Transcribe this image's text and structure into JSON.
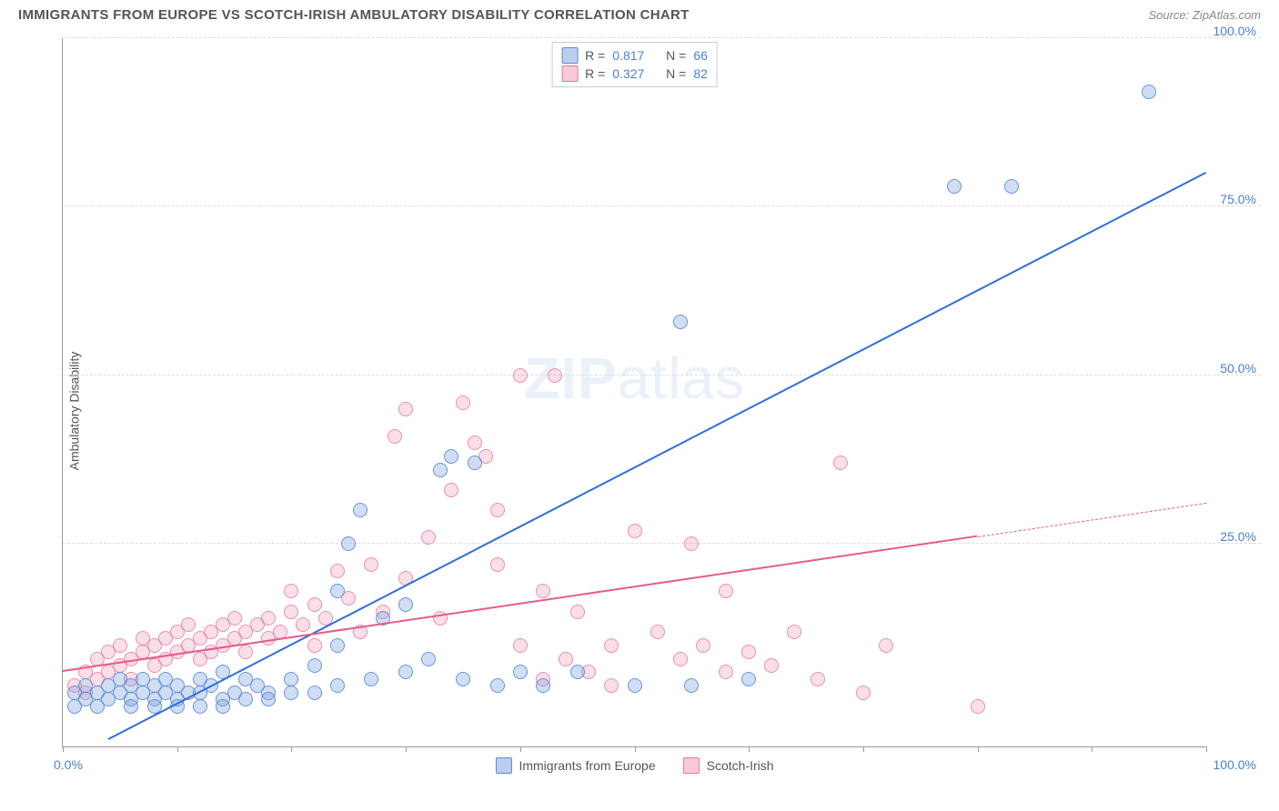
{
  "header": {
    "title": "IMMIGRANTS FROM EUROPE VS SCOTCH-IRISH AMBULATORY DISABILITY CORRELATION CHART",
    "source_label": "Source: ZipAtlas.com"
  },
  "chart": {
    "type": "scatter",
    "y_axis_title": "Ambulatory Disability",
    "xlim": [
      0,
      100
    ],
    "ylim": [
      -5,
      100
    ],
    "x_ticks": [
      0,
      10,
      20,
      30,
      40,
      50,
      60,
      70,
      80,
      90,
      100
    ],
    "x_tick_labels": {
      "min": "0.0%",
      "max": "100.0%"
    },
    "y_gridlines": [
      25,
      50,
      75,
      100
    ],
    "y_tick_labels": [
      "25.0%",
      "50.0%",
      "75.0%",
      "100.0%"
    ],
    "background_color": "#ffffff",
    "grid_color": "#dddddd",
    "axis_color": "#999999",
    "label_color": "#4a7fd8",
    "watermark_text": "ZIPatlas",
    "series": [
      {
        "name": "Immigrants from Europe",
        "color_fill": "rgba(120,160,220,0.35)",
        "color_stroke": "rgba(80,130,210,0.8)",
        "trend_color": "#2e6fd9",
        "R": "0.817",
        "N": "66",
        "trend": {
          "x1": 4,
          "y1": -4,
          "x2": 100,
          "y2": 80
        },
        "points": [
          [
            1,
            1
          ],
          [
            1,
            3
          ],
          [
            2,
            2
          ],
          [
            2,
            4
          ],
          [
            3,
            1
          ],
          [
            3,
            3
          ],
          [
            4,
            2
          ],
          [
            4,
            4
          ],
          [
            5,
            3
          ],
          [
            5,
            5
          ],
          [
            6,
            2
          ],
          [
            6,
            4
          ],
          [
            7,
            5
          ],
          [
            7,
            3
          ],
          [
            8,
            4
          ],
          [
            8,
            2
          ],
          [
            9,
            3
          ],
          [
            9,
            5
          ],
          [
            10,
            4
          ],
          [
            10,
            2
          ],
          [
            11,
            3
          ],
          [
            12,
            5
          ],
          [
            12,
            3
          ],
          [
            13,
            4
          ],
          [
            14,
            2
          ],
          [
            14,
            6
          ],
          [
            15,
            3
          ],
          [
            16,
            5
          ],
          [
            17,
            4
          ],
          [
            18,
            3
          ],
          [
            6,
            1
          ],
          [
            8,
            1
          ],
          [
            10,
            1
          ],
          [
            12,
            1
          ],
          [
            14,
            1
          ],
          [
            16,
            2
          ],
          [
            18,
            2
          ],
          [
            20,
            3
          ],
          [
            22,
            3
          ],
          [
            24,
            4
          ],
          [
            20,
            5
          ],
          [
            22,
            7
          ],
          [
            24,
            18
          ],
          [
            25,
            25
          ],
          [
            26,
            30
          ],
          [
            28,
            14
          ],
          [
            30,
            6
          ],
          [
            32,
            8
          ],
          [
            34,
            38
          ],
          [
            36,
            37
          ],
          [
            33,
            36
          ],
          [
            24,
            10
          ],
          [
            27,
            5
          ],
          [
            30,
            16
          ],
          [
            35,
            5
          ],
          [
            38,
            4
          ],
          [
            40,
            6
          ],
          [
            42,
            4
          ],
          [
            45,
            6
          ],
          [
            50,
            4
          ],
          [
            55,
            4
          ],
          [
            60,
            5
          ],
          [
            54,
            58
          ],
          [
            78,
            78
          ],
          [
            83,
            78
          ],
          [
            95,
            92
          ]
        ]
      },
      {
        "name": "Scotch-Irish",
        "color_fill": "rgba(240,150,175,0.3)",
        "color_stroke": "rgba(230,110,150,0.7)",
        "trend_color": "#e85a8a",
        "R": "0.327",
        "N": "82",
        "trend": {
          "x1": 0,
          "y1": 6,
          "x2": 80,
          "y2": 26
        },
        "trend_dashed": {
          "x1": 80,
          "y1": 26,
          "x2": 100,
          "y2": 31
        },
        "points": [
          [
            1,
            4
          ],
          [
            2,
            6
          ],
          [
            2,
            3
          ],
          [
            3,
            5
          ],
          [
            3,
            8
          ],
          [
            4,
            6
          ],
          [
            4,
            9
          ],
          [
            5,
            7
          ],
          [
            5,
            10
          ],
          [
            6,
            8
          ],
          [
            6,
            5
          ],
          [
            7,
            9
          ],
          [
            7,
            11
          ],
          [
            8,
            10
          ],
          [
            8,
            7
          ],
          [
            9,
            11
          ],
          [
            9,
            8
          ],
          [
            10,
            12
          ],
          [
            10,
            9
          ],
          [
            11,
            10
          ],
          [
            11,
            13
          ],
          [
            12,
            11
          ],
          [
            12,
            8
          ],
          [
            13,
            12
          ],
          [
            13,
            9
          ],
          [
            14,
            13
          ],
          [
            14,
            10
          ],
          [
            15,
            11
          ],
          [
            15,
            14
          ],
          [
            16,
            12
          ],
          [
            16,
            9
          ],
          [
            17,
            13
          ],
          [
            18,
            11
          ],
          [
            18,
            14
          ],
          [
            19,
            12
          ],
          [
            20,
            15
          ],
          [
            20,
            18
          ],
          [
            21,
            13
          ],
          [
            22,
            10
          ],
          [
            22,
            16
          ],
          [
            23,
            14
          ],
          [
            24,
            21
          ],
          [
            25,
            17
          ],
          [
            26,
            12
          ],
          [
            27,
            22
          ],
          [
            28,
            15
          ],
          [
            29,
            41
          ],
          [
            30,
            20
          ],
          [
            32,
            26
          ],
          [
            33,
            14
          ],
          [
            34,
            33
          ],
          [
            35,
            46
          ],
          [
            36,
            40
          ],
          [
            37,
            38
          ],
          [
            38,
            30
          ],
          [
            40,
            10
          ],
          [
            42,
            18
          ],
          [
            43,
            50
          ],
          [
            44,
            8
          ],
          [
            45,
            15
          ],
          [
            46,
            6
          ],
          [
            48,
            10
          ],
          [
            50,
            27
          ],
          [
            52,
            12
          ],
          [
            54,
            8
          ],
          [
            56,
            10
          ],
          [
            58,
            6
          ],
          [
            60,
            9
          ],
          [
            62,
            7
          ],
          [
            64,
            12
          ],
          [
            66,
            5
          ],
          [
            68,
            37
          ],
          [
            70,
            3
          ],
          [
            72,
            10
          ],
          [
            58,
            18
          ],
          [
            38,
            22
          ],
          [
            30,
            45
          ],
          [
            48,
            4
          ],
          [
            55,
            25
          ],
          [
            42,
            5
          ],
          [
            40,
            50
          ],
          [
            80,
            1
          ]
        ]
      }
    ],
    "bottom_legend": [
      {
        "swatch": "blue",
        "label": "Immigrants from Europe"
      },
      {
        "swatch": "pink",
        "label": "Scotch-Irish"
      }
    ]
  }
}
